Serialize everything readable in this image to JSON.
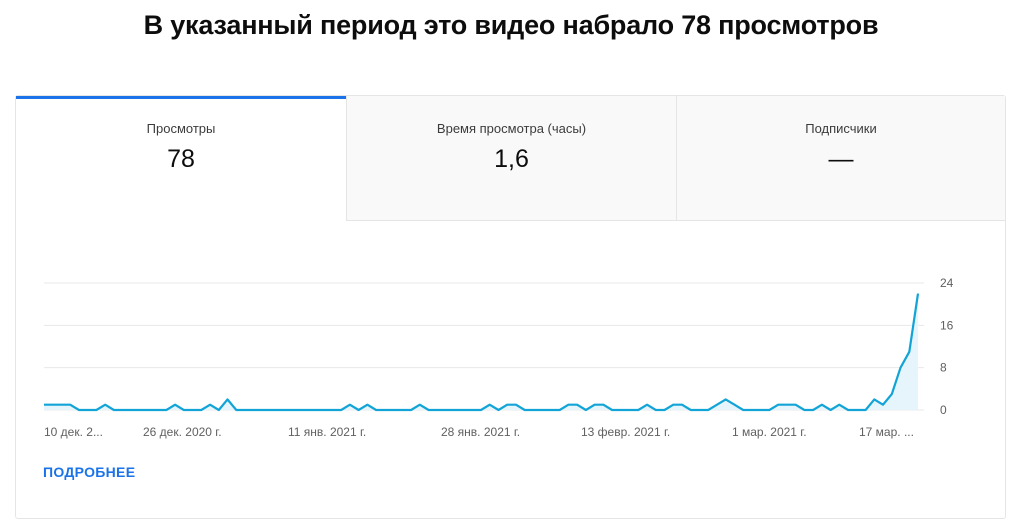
{
  "headline": "В указанный период это видео набрало 78 просмотров",
  "tabs": [
    {
      "label": "Просмотры",
      "value": "78"
    },
    {
      "label": "Время просмотра (часы)",
      "value": "1,6"
    },
    {
      "label": "Подписчики",
      "value": "—"
    }
  ],
  "more_link": "ПОДРОБНЕЕ",
  "colors": {
    "accent": "#1a73e8",
    "line": "#12a4d6",
    "area": "#e6f5fb"
  },
  "chart_data": {
    "type": "area",
    "title": "",
    "xlabel": "",
    "ylabel": "",
    "x_ticks": [
      "10 дек. 2...",
      "26 дек. 2020 г.",
      "11 янв. 2021 г.",
      "28 янв. 2021 г.",
      "13 февр. 2021 г.",
      "1 мар. 2021 г.",
      "17 мар. ..."
    ],
    "y_ticks": [
      "24",
      "16",
      "8",
      "0"
    ],
    "ylim": [
      0,
      24
    ],
    "grid": true,
    "series": [
      {
        "values": [
          1,
          1,
          1,
          1,
          0,
          0,
          0,
          1,
          0,
          0,
          0,
          0,
          0,
          0,
          0,
          1,
          0,
          0,
          0,
          1,
          0,
          2,
          0,
          0,
          0,
          0,
          0,
          0,
          0,
          0,
          0,
          0,
          0,
          0,
          0,
          1,
          0,
          1,
          0,
          0,
          0,
          0,
          0,
          1,
          0,
          0,
          0,
          0,
          0,
          0,
          0,
          1,
          0,
          1,
          1,
          0,
          0,
          0,
          0,
          0,
          1,
          1,
          0,
          1,
          1,
          0,
          0,
          0,
          0,
          1,
          0,
          0,
          1,
          1,
          0,
          0,
          0,
          1,
          2,
          1,
          0,
          0,
          0,
          0,
          1,
          1,
          1,
          0,
          0,
          1,
          0,
          1,
          0,
          0,
          0,
          2,
          1,
          3,
          8,
          11,
          22
        ]
      }
    ]
  }
}
